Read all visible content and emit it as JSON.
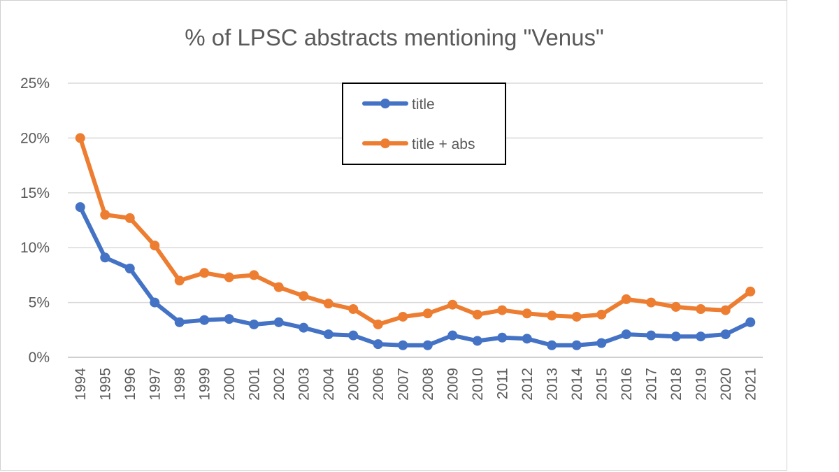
{
  "chart_data": {
    "type": "line",
    "title": "% of LPSC abstracts mentioning \"Venus\"",
    "xlabel": "",
    "ylabel": "",
    "ylim": [
      0,
      25
    ],
    "y_ticks": [
      "0%",
      "5%",
      "10%",
      "15%",
      "20%",
      "25%"
    ],
    "grid": true,
    "legend_position": "top-center",
    "categories": [
      "1994",
      "1995",
      "1996",
      "1997",
      "1998",
      "1999",
      "2000",
      "2001",
      "2002",
      "2003",
      "2004",
      "2005",
      "2006",
      "2007",
      "2008",
      "2009",
      "2010",
      "2011",
      "2012",
      "2013",
      "2014",
      "2015",
      "2016",
      "2017",
      "2018",
      "2019",
      "2020",
      "2021"
    ],
    "series": [
      {
        "name": "title",
        "color": "#4472C4",
        "values": [
          13.7,
          9.1,
          8.1,
          5.0,
          3.2,
          3.4,
          3.5,
          3.0,
          3.2,
          2.7,
          2.1,
          2.0,
          1.2,
          1.1,
          1.1,
          2.0,
          1.5,
          1.8,
          1.7,
          1.1,
          1.1,
          1.3,
          2.1,
          2.0,
          1.9,
          1.9,
          2.1,
          3.2
        ]
      },
      {
        "name": "title + abs",
        "color": "#ED7D31",
        "values": [
          20.0,
          13.0,
          12.7,
          10.2,
          7.0,
          7.7,
          7.3,
          7.5,
          6.4,
          5.6,
          4.9,
          4.4,
          3.0,
          3.7,
          4.0,
          4.8,
          3.9,
          4.3,
          4.0,
          3.8,
          3.7,
          3.9,
          5.3,
          5.0,
          4.6,
          4.4,
          4.3,
          6.0
        ]
      }
    ]
  }
}
